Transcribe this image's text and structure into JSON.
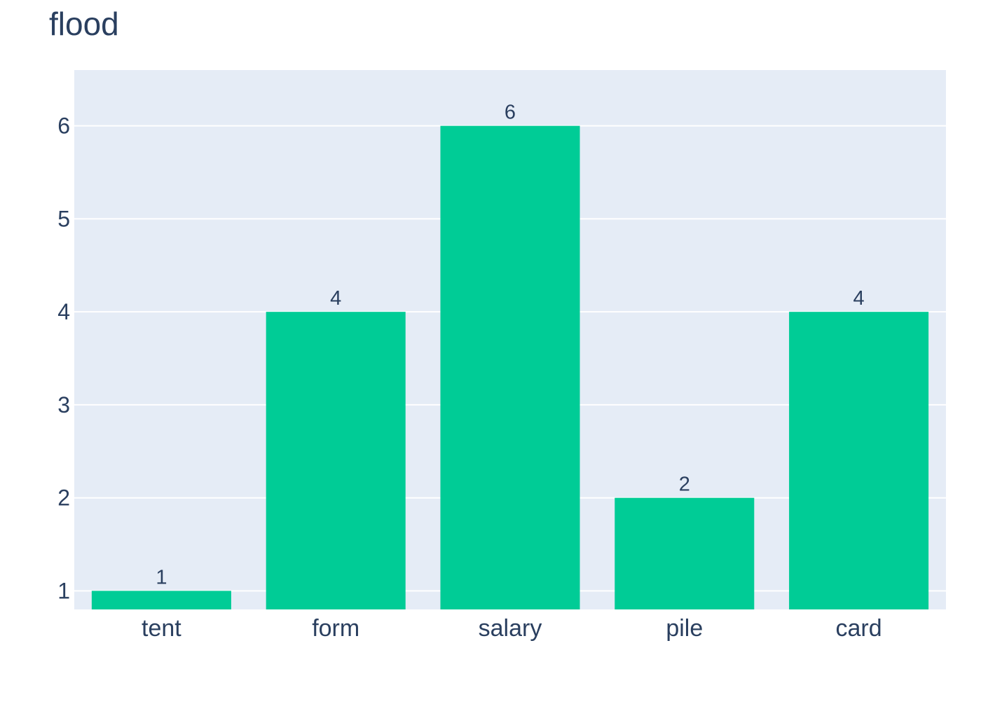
{
  "chart_data": {
    "type": "bar",
    "title": "flood",
    "xlabel": "",
    "ylabel": "",
    "categories": [
      "tent",
      "form",
      "salary",
      "pile",
      "card"
    ],
    "values": [
      1,
      4,
      6,
      2,
      4
    ],
    "data_labels": [
      "1",
      "4",
      "6",
      "2",
      "4"
    ],
    "y_ticks": [
      1,
      2,
      3,
      4,
      5,
      6
    ],
    "ylim": [
      0.8,
      6.6
    ],
    "grid": true,
    "legend": "none"
  },
  "colors": {
    "bar": "#00CC96",
    "plot_bg": "#E5ECF6",
    "grid": "#FFFFFF",
    "text": "#2A3F5F"
  }
}
